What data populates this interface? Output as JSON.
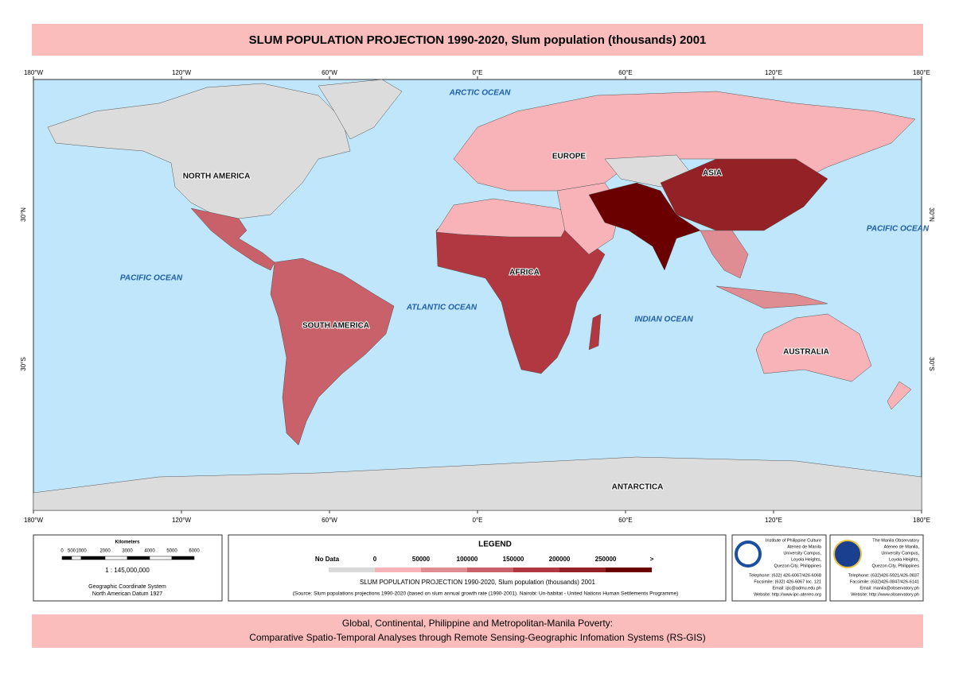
{
  "title": "SLUM POPULATION PROJECTION 1990-2020, Slum population (thousands) 2001",
  "graticule": {
    "longitudes": [
      "180°W",
      "120°W",
      "60°W",
      "0°E",
      "60°E",
      "120°E",
      "180°E"
    ],
    "latitudes": [
      "30°N",
      "30°S"
    ]
  },
  "oceans": [
    "ARCTIC OCEAN",
    "PACIFIC OCEAN",
    "ATLANTIC OCEAN",
    "INDIAN OCEAN",
    "PACIFIC OCEAN"
  ],
  "continents": [
    "NORTH AMERICA",
    "SOUTH AMERICA",
    "EUROPE",
    "AFRICA",
    "ASIA",
    "AUSTRALIA",
    "ANTARCTICA"
  ],
  "scale_bar": {
    "title": "Kilometers",
    "ticks": [
      "0",
      "500",
      "1000",
      "2000",
      "3000",
      "4000",
      "5000",
      "6000"
    ],
    "ratio": "1 : 145,000,000",
    "system": "Geographic Coordinate System",
    "datum": "North American Datum 1927"
  },
  "legend": {
    "title": "LEGEND",
    "no_data": "No Data",
    "breaks": [
      "0",
      "50000",
      "100000",
      "150000",
      "200000",
      "250000",
      ">"
    ],
    "colors": [
      "#d9d9d9",
      "#f7b3b8",
      "#e08c93",
      "#c9616a",
      "#b13840",
      "#942126",
      "#6b0000"
    ],
    "subtitle": "SLUM POPULATION PROJECTION 1990-2020, Slum population (thousands) 2001",
    "source": "(Source: Slum populations projections 1990-2020 (based on slum annual growth rate (1990-2001). Nairobi: Un-habitat - United Nations Human Settlements Programme)"
  },
  "logos": [
    {
      "lines": [
        "Institute of Philippine Culture",
        "Ateneo de Manila",
        "University Campus,",
        "Loyola Heights,",
        "Quezon City, Philippines",
        "Telephone: (632) 426-6067/426-6068",
        "Facsimile: (632) 426-6067 loc. 121",
        "Email: ipc@admu.edu.ph",
        "Website: http://www.ipc-ateneo.org"
      ]
    },
    {
      "lines": [
        "The Manila Observatory",
        "Ateneo de Manila,",
        "University Campus,",
        "Loyola Heights,",
        "Quezon City, Philippines",
        "Telephone: (632)426-5921/426-0837",
        "Facsimile: (632)426-0847/426-6141",
        "Email: manila@observatory.ph",
        "Website: http://www.observatory.ph"
      ]
    }
  ],
  "footer": [
    "Global, Continental, Philippine and Metropolitan-Manila Poverty:",
    "Comparative Spatio-Temporal Analyses through Remote Sensing-Geographic Infomation Systems (RS-GIS)"
  ]
}
